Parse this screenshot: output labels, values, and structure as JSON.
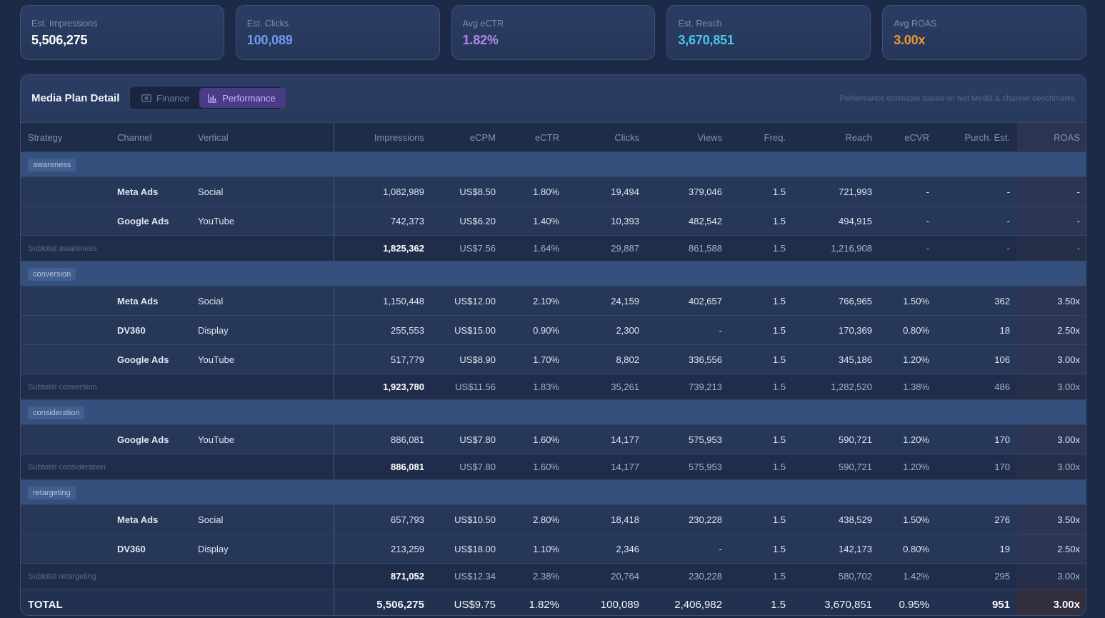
{
  "kpis": [
    {
      "label": "Est. Impressions",
      "value": "5,506,275",
      "color": "#ffffff"
    },
    {
      "label": "Est. Clicks",
      "value": "100,089",
      "color": "#6f9af2"
    },
    {
      "label": "Avg eCTR",
      "value": "1.82%",
      "color": "#b488f0"
    },
    {
      "label": "Est. Reach",
      "value": "3,670,851",
      "color": "#4cc6e8"
    },
    {
      "label": "Avg ROAS",
      "value": "3.00x",
      "color": "#f0962f"
    }
  ],
  "panel": {
    "title": "Media Plan Detail",
    "toggle": {
      "finance": "Finance",
      "performance": "Performance",
      "active": "performance"
    },
    "note": "Performance estimates based on Net Media & channel benchmarks"
  },
  "columns": [
    "Strategy",
    "Channel",
    "Vertical",
    "Impressions",
    "eCPM",
    "eCTR",
    "Clicks",
    "Views",
    "Freq.",
    "Reach",
    "eCVR",
    "Purch. Est.",
    "ROAS"
  ],
  "groups": [
    {
      "name": "awareness",
      "rows": [
        {
          "channel": "Meta Ads",
          "vertical": "Social",
          "impressions": "1,082,989",
          "ecpm": "US$8.50",
          "ectr": "1.80%",
          "clicks": "19,494",
          "views": "379,046",
          "freq": "1.5",
          "reach": "721,993",
          "ecvr": "-",
          "purch": "-",
          "roas": "-"
        },
        {
          "channel": "Google Ads",
          "vertical": "YouTube",
          "impressions": "742,373",
          "ecpm": "US$6.20",
          "ectr": "1.40%",
          "clicks": "10,393",
          "views": "482,542",
          "freq": "1.5",
          "reach": "494,915",
          "ecvr": "-",
          "purch": "-",
          "roas": "-"
        }
      ],
      "subtotal": {
        "label": "Subtotal awareness",
        "impressions": "1,825,362",
        "ecpm": "US$7.56",
        "ectr": "1.64%",
        "clicks": "29,887",
        "views": "861,588",
        "freq": "1.5",
        "reach": "1,216,908",
        "ecvr": "-",
        "purch": "-",
        "roas": "-"
      }
    },
    {
      "name": "conversion",
      "rows": [
        {
          "channel": "Meta Ads",
          "vertical": "Social",
          "impressions": "1,150,448",
          "ecpm": "US$12.00",
          "ectr": "2.10%",
          "clicks": "24,159",
          "views": "402,657",
          "freq": "1.5",
          "reach": "766,965",
          "ecvr": "1.50%",
          "purch": "362",
          "roas": "3.50x"
        },
        {
          "channel": "DV360",
          "vertical": "Display",
          "impressions": "255,553",
          "ecpm": "US$15.00",
          "ectr": "0.90%",
          "clicks": "2,300",
          "views": "-",
          "freq": "1.5",
          "reach": "170,369",
          "ecvr": "0.80%",
          "purch": "18",
          "roas": "2.50x"
        },
        {
          "channel": "Google Ads",
          "vertical": "YouTube",
          "impressions": "517,779",
          "ecpm": "US$8.90",
          "ectr": "1.70%",
          "clicks": "8,802",
          "views": "336,556",
          "freq": "1.5",
          "reach": "345,186",
          "ecvr": "1.20%",
          "purch": "106",
          "roas": "3.00x"
        }
      ],
      "subtotal": {
        "label": "Subtotal conversion",
        "impressions": "1,923,780",
        "ecpm": "US$11.56",
        "ectr": "1.83%",
        "clicks": "35,261",
        "views": "739,213",
        "freq": "1.5",
        "reach": "1,282,520",
        "ecvr": "1.38%",
        "purch": "486",
        "roas": "3.00x"
      }
    },
    {
      "name": "consideration",
      "rows": [
        {
          "channel": "Google Ads",
          "vertical": "YouTube",
          "impressions": "886,081",
          "ecpm": "US$7.80",
          "ectr": "1.60%",
          "clicks": "14,177",
          "views": "575,953",
          "freq": "1.5",
          "reach": "590,721",
          "ecvr": "1.20%",
          "purch": "170",
          "roas": "3.00x"
        }
      ],
      "subtotal": {
        "label": "Subtotal consideration",
        "impressions": "886,081",
        "ecpm": "US$7.80",
        "ectr": "1.60%",
        "clicks": "14,177",
        "views": "575,953",
        "freq": "1.5",
        "reach": "590,721",
        "ecvr": "1.20%",
        "purch": "170",
        "roas": "3.00x"
      }
    },
    {
      "name": "retargeting",
      "rows": [
        {
          "channel": "Meta Ads",
          "vertical": "Social",
          "impressions": "657,793",
          "ecpm": "US$10.50",
          "ectr": "2.80%",
          "clicks": "18,418",
          "views": "230,228",
          "freq": "1.5",
          "reach": "438,529",
          "ecvr": "1.50%",
          "purch": "276",
          "roas": "3.50x"
        },
        {
          "channel": "DV360",
          "vertical": "Display",
          "impressions": "213,259",
          "ecpm": "US$18.00",
          "ectr": "1.10%",
          "clicks": "2,346",
          "views": "-",
          "freq": "1.5",
          "reach": "142,173",
          "ecvr": "0.80%",
          "purch": "19",
          "roas": "2.50x"
        }
      ],
      "subtotal": {
        "label": "Subtotal retargeting",
        "impressions": "871,052",
        "ecpm": "US$12.34",
        "ectr": "2.38%",
        "clicks": "20,764",
        "views": "230,228",
        "freq": "1.5",
        "reach": "580,702",
        "ecvr": "1.42%",
        "purch": "295",
        "roas": "3.00x"
      }
    }
  ],
  "total": {
    "label": "TOTAL",
    "impressions": "5,506,275",
    "ecpm": "US$9.75",
    "ectr": "1.82%",
    "clicks": "100,089",
    "views": "2,406,982",
    "freq": "1.5",
    "reach": "3,670,851",
    "ecvr": "0.95%",
    "purch": "951",
    "roas": "3.00x"
  }
}
